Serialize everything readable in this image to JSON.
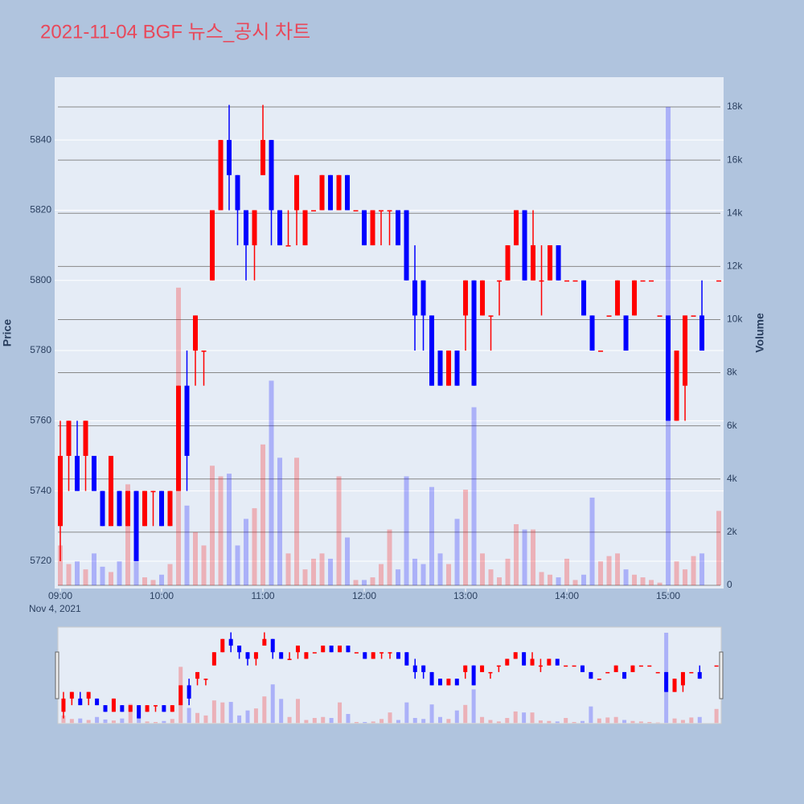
{
  "chart_data": {
    "type": "candlestick",
    "title": "2021-11-04 BGF 뉴스_공시 차트",
    "x": [
      "2021-11-04 09:00",
      "2021-11-04 09:05",
      "2021-11-04 09:10",
      "2021-11-04 09:15",
      "2021-11-04 09:20",
      "2021-11-04 09:25",
      "2021-11-04 09:30",
      "2021-11-04 09:35",
      "2021-11-04 09:40",
      "2021-11-04 09:45",
      "2021-11-04 09:50",
      "2021-11-04 09:55",
      "2021-11-04 10:00",
      "2021-11-04 10:05",
      "2021-11-04 10:10",
      "2021-11-04 10:15",
      "2021-11-04 10:20",
      "2021-11-04 10:25",
      "2021-11-04 10:30",
      "2021-11-04 10:35",
      "2021-11-04 10:40",
      "2021-11-04 10:45",
      "2021-11-04 10:50",
      "2021-11-04 10:55",
      "2021-11-04 11:00",
      "2021-11-04 11:05",
      "2021-11-04 11:10",
      "2021-11-04 11:15",
      "2021-11-04 11:20",
      "2021-11-04 11:25",
      "2021-11-04 11:30",
      "2021-11-04 11:35",
      "2021-11-04 11:40",
      "2021-11-04 11:45",
      "2021-11-04 11:50",
      "2021-11-04 11:55",
      "2021-11-04 12:00",
      "2021-11-04 12:05",
      "2021-11-04 12:10",
      "2021-11-04 12:15",
      "2021-11-04 12:20",
      "2021-11-04 12:25",
      "2021-11-04 12:30",
      "2021-11-04 12:35",
      "2021-11-04 12:40",
      "2021-11-04 12:45",
      "2021-11-04 12:50",
      "2021-11-04 12:55",
      "2021-11-04 13:00",
      "2021-11-04 13:05",
      "2021-11-04 13:10",
      "2021-11-04 13:15",
      "2021-11-04 13:20",
      "2021-11-04 13:25",
      "2021-11-04 13:30",
      "2021-11-04 13:35",
      "2021-11-04 13:40",
      "2021-11-04 13:45",
      "2021-11-04 13:50",
      "2021-11-04 13:55",
      "2021-11-04 14:00",
      "2021-11-04 14:05",
      "2021-11-04 14:10",
      "2021-11-04 14:15",
      "2021-11-04 14:20",
      "2021-11-04 14:25",
      "2021-11-04 14:30",
      "2021-11-04 14:35",
      "2021-11-04 14:40",
      "2021-11-04 14:45",
      "2021-11-04 14:50",
      "2021-11-04 14:55",
      "2021-11-04 15:00",
      "2021-11-04 15:05",
      "2021-11-04 15:10",
      "2021-11-04 15:15",
      "2021-11-04 15:20",
      "2021-11-04 15:30"
    ],
    "open": [
      5730,
      5750,
      5750,
      5750,
      5750,
      5740,
      5730,
      5740,
      5730,
      5740,
      5730,
      5740,
      5740,
      5730,
      5740,
      5770,
      5780,
      5780,
      5800,
      5820,
      5840,
      5830,
      5820,
      5810,
      5830,
      5840,
      5820,
      5810,
      5820,
      5810,
      5820,
      5820,
      5830,
      5820,
      5830,
      5820,
      5820,
      5810,
      5820,
      5820,
      5820,
      5820,
      5800,
      5800,
      5790,
      5780,
      5770,
      5780,
      5790,
      5800,
      5790,
      5790,
      5800,
      5800,
      5810,
      5820,
      5800,
      5800,
      5800,
      5810,
      5800,
      5800,
      5800,
      5790,
      5780,
      5790,
      5790,
      5790,
      5790,
      5800,
      5800,
      5790,
      5790,
      5760,
      5770,
      5790,
      5790,
      5800
    ],
    "high": [
      5760,
      5760,
      5760,
      5760,
      5750,
      5740,
      5750,
      5740,
      5740,
      5740,
      5740,
      5740,
      5740,
      5740,
      5770,
      5780,
      5790,
      5780,
      5820,
      5840,
      5850,
      5830,
      5820,
      5820,
      5850,
      5840,
      5820,
      5820,
      5830,
      5820,
      5820,
      5830,
      5830,
      5830,
      5830,
      5820,
      5820,
      5820,
      5820,
      5820,
      5820,
      5820,
      5810,
      5800,
      5790,
      5780,
      5780,
      5780,
      5800,
      5800,
      5800,
      5790,
      5800,
      5810,
      5820,
      5820,
      5820,
      5810,
      5810,
      5810,
      5800,
      5800,
      5800,
      5790,
      5780,
      5790,
      5800,
      5790,
      5800,
      5800,
      5800,
      5790,
      5790,
      5780,
      5790,
      5790,
      5800,
      5800
    ],
    "low": [
      5720,
      5740,
      5740,
      5740,
      5740,
      5730,
      5730,
      5730,
      5730,
      5720,
      5730,
      5730,
      5730,
      5730,
      5740,
      5740,
      5770,
      5770,
      5800,
      5820,
      5820,
      5810,
      5800,
      5800,
      5830,
      5810,
      5810,
      5810,
      5810,
      5810,
      5820,
      5820,
      5820,
      5820,
      5820,
      5820,
      5810,
      5810,
      5810,
      5810,
      5810,
      5800,
      5780,
      5780,
      5770,
      5770,
      5770,
      5770,
      5780,
      5770,
      5790,
      5780,
      5790,
      5800,
      5810,
      5800,
      5800,
      5790,
      5800,
      5800,
      5800,
      5800,
      5790,
      5780,
      5780,
      5790,
      5790,
      5780,
      5790,
      5800,
      5800,
      5790,
      5760,
      5760,
      5760,
      5790,
      5780,
      5800
    ],
    "close": [
      5750,
      5760,
      5740,
      5760,
      5740,
      5730,
      5750,
      5730,
      5740,
      5720,
      5740,
      5740,
      5730,
      5740,
      5770,
      5750,
      5790,
      5780,
      5820,
      5840,
      5830,
      5820,
      5810,
      5820,
      5840,
      5820,
      5810,
      5810,
      5830,
      5820,
      5820,
      5830,
      5820,
      5830,
      5820,
      5820,
      5810,
      5820,
      5820,
      5820,
      5810,
      5800,
      5790,
      5790,
      5770,
      5770,
      5780,
      5770,
      5800,
      5770,
      5800,
      5790,
      5800,
      5810,
      5820,
      5800,
      5810,
      5800,
      5810,
      5800,
      5800,
      5800,
      5790,
      5780,
      5780,
      5790,
      5800,
      5780,
      5800,
      5800,
      5800,
      5790,
      5760,
      5780,
      5790,
      5790,
      5780,
      5800
    ],
    "volume": [
      1500,
      800,
      900,
      600,
      1200,
      700,
      500,
      900,
      3800,
      900,
      300,
      200,
      400,
      800,
      11200,
      3000,
      2000,
      1500,
      4500,
      4100,
      4200,
      1500,
      2500,
      2900,
      5300,
      7700,
      4800,
      1200,
      4800,
      600,
      1000,
      1200,
      1000,
      4100,
      1800,
      200,
      200,
      300,
      800,
      2100,
      600,
      4100,
      1000,
      800,
      3700,
      1200,
      800,
      2500,
      3600,
      6700,
      1200,
      600,
      300,
      1000,
      2300,
      2100,
      2100,
      500,
      400,
      300,
      1000,
      200,
      400,
      3300,
      900,
      1100,
      1200,
      600,
      400,
      300,
      200,
      100,
      18000,
      900,
      600,
      1100,
      1200,
      2800
    ],
    "increasing_color": "#ff0000",
    "decreasing_color": "#0000ff",
    "xlim": [
      "2021-11-04 08:56:40",
      "2021-11-04 15:32:50"
    ],
    "xticks": [
      {
        "value": "2021-11-04 09:00",
        "label": "09:00"
      },
      {
        "value": "2021-11-04 10:00",
        "label": "10:00"
      },
      {
        "value": "2021-11-04 11:00",
        "label": "11:00"
      },
      {
        "value": "2021-11-04 12:00",
        "label": "12:00"
      },
      {
        "value": "2021-11-04 13:00",
        "label": "13:00"
      },
      {
        "value": "2021-11-04 14:00",
        "label": "14:00"
      },
      {
        "value": "2021-11-04 15:00",
        "label": "15:00"
      }
    ],
    "x_date_label": "Nov 4, 2021",
    "ylim": [
      5712.2,
      5857.9
    ],
    "yticks": [
      5720,
      5740,
      5760,
      5780,
      5800,
      5820,
      5840
    ],
    "y_label": "Price",
    "y2lim": [
      -121,
      19119
    ],
    "y2ticks": [
      0,
      {
        "value": 2000,
        "label": "2k"
      },
      {
        "value": 4000,
        "label": "4k"
      },
      {
        "value": 6000,
        "label": "6k"
      },
      {
        "value": 8000,
        "label": "8k"
      },
      {
        "value": 10000,
        "label": "10k"
      },
      {
        "value": 12000,
        "label": "12k"
      },
      {
        "value": 14000,
        "label": "14k"
      },
      {
        "value": 16000,
        "label": "16k"
      },
      {
        "value": 18000,
        "label": "18k"
      }
    ],
    "y2_label": "Volume",
    "rangeslider": true
  }
}
